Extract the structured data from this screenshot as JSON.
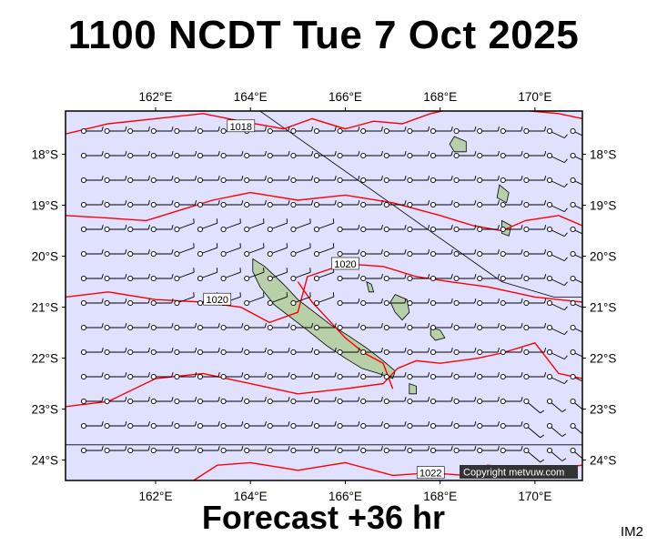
{
  "header": {
    "title": "1100 NCDT Tue 7 Oct 2025",
    "subtitle": "Forecast +36 hr",
    "im_code": "IM2"
  },
  "map": {
    "lon_range": [
      160.1,
      171.0
    ],
    "lat_range": [
      -24.4,
      -17.15
    ],
    "ocean_color": "#e0e0ff",
    "land_color": "#b8d0a8",
    "isobar_color": "#ff0000",
    "lon_ticks": [
      "162°E",
      "164°E",
      "166°E",
      "168°E",
      "170°E"
    ],
    "lat_ticks": [
      "18°S",
      "19°S",
      "20°S",
      "21°S",
      "22°S",
      "23°S",
      "24°S"
    ],
    "isobar_labels": [
      {
        "text": "1018",
        "lon": 163.8,
        "lat": -17.45
      },
      {
        "text": "1020",
        "lon": 166.0,
        "lat": -20.15
      },
      {
        "text": "1020",
        "lon": 163.3,
        "lat": -20.85
      },
      {
        "text": "1022",
        "lon": 167.8,
        "lat": -24.25
      }
    ],
    "copyright": "Copyright metvuw.com"
  }
}
